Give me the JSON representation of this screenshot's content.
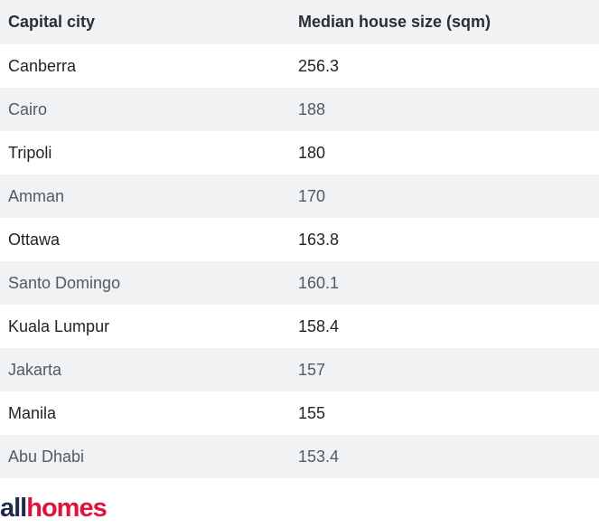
{
  "table": {
    "headers": [
      "Capital city",
      "Median house size (sqm)"
    ],
    "rows": [
      {
        "city": "Canberra",
        "size": "256.3"
      },
      {
        "city": "Cairo",
        "size": "188"
      },
      {
        "city": "Tripoli",
        "size": "180"
      },
      {
        "city": "Amman",
        "size": "170"
      },
      {
        "city": "Ottawa",
        "size": "163.8"
      },
      {
        "city": "Santo Domingo",
        "size": "160.1"
      },
      {
        "city": "Kuala Lumpur",
        "size": "158.4"
      },
      {
        "city": "Jakarta",
        "size": "157"
      },
      {
        "city": "Manila",
        "size": "155"
      },
      {
        "city": "Abu Dhabi",
        "size": "153.4"
      }
    ]
  },
  "logo": {
    "part1": "all",
    "part2": "homes",
    "colors": {
      "part1": "#1d2a4e",
      "part2": "#e0113a"
    }
  },
  "colors": {
    "header_bg": "#f1f2f4",
    "stripe_bg": "#f1f2f4",
    "row_bg": "#ffffff"
  }
}
